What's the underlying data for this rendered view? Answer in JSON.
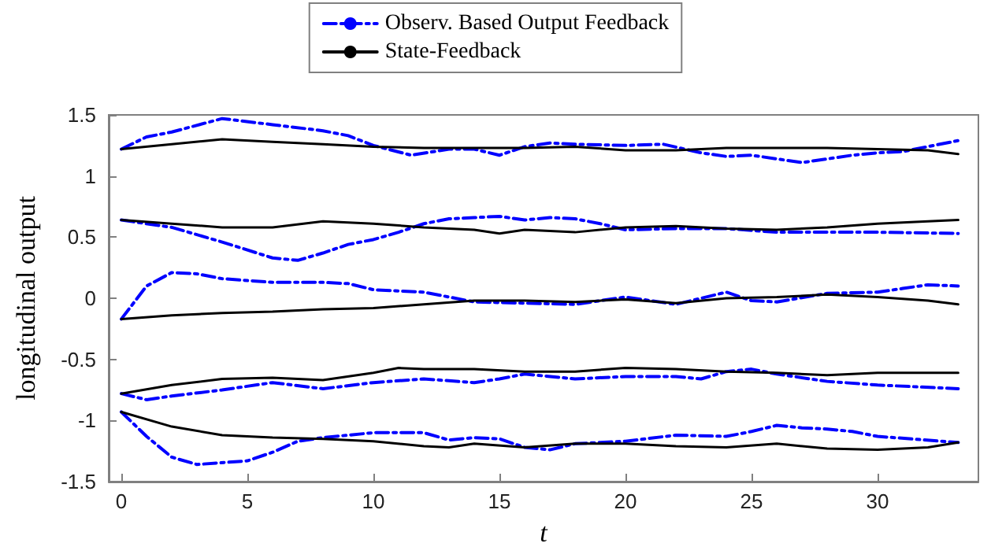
{
  "chart_data": {
    "type": "line",
    "xlabel": "t",
    "ylabel": "longitudinal output",
    "xlim": [
      -0.5,
      34
    ],
    "xticks": [
      0,
      5,
      10,
      15,
      20,
      25,
      30
    ],
    "ylim": [
      -1.5,
      1.5
    ],
    "yticks": [
      -1.5,
      -1,
      -0.5,
      0,
      0.5,
      1,
      1.5
    ],
    "grid": false,
    "legend": "top",
    "marker": "none",
    "series": [
      {
        "name": "Observ. Based Output Feedback",
        "color": "#0000ff",
        "line_style": "dashed",
        "x": [
          0,
          1,
          2,
          4,
          6,
          8,
          9,
          10,
          11.5,
          13,
          14,
          15,
          16,
          17,
          18,
          20,
          21.5,
          23,
          24,
          25,
          27,
          29,
          30,
          31,
          33.2
        ],
        "values": [
          1.22,
          1.32,
          1.36,
          1.47,
          1.42,
          1.37,
          1.33,
          1.25,
          1.17,
          1.22,
          1.22,
          1.17,
          1.24,
          1.27,
          1.26,
          1.25,
          1.26,
          1.19,
          1.16,
          1.17,
          1.11,
          1.17,
          1.19,
          1.2,
          1.29
        ]
      },
      {
        "name": "State-Feedback",
        "color": "#000000",
        "line_style": "solid",
        "x": [
          0,
          2,
          4,
          6,
          8,
          10,
          12,
          14,
          16,
          18,
          20,
          22,
          24,
          26,
          28,
          30,
          32,
          33.2
        ],
        "values": [
          1.22,
          1.26,
          1.3,
          1.28,
          1.26,
          1.24,
          1.23,
          1.23,
          1.23,
          1.24,
          1.21,
          1.21,
          1.23,
          1.23,
          1.23,
          1.22,
          1.21,
          1.18
        ]
      },
      {
        "color": "#0000ff",
        "line_style": "dashed",
        "x": [
          0,
          2,
          4,
          6,
          7,
          8,
          9,
          10,
          11,
          12,
          13,
          14,
          15,
          16,
          17,
          18,
          19,
          20,
          22,
          24,
          26,
          28,
          30,
          33.2
        ],
        "values": [
          0.64,
          0.58,
          0.46,
          0.33,
          0.31,
          0.37,
          0.44,
          0.48,
          0.54,
          0.61,
          0.65,
          0.66,
          0.67,
          0.64,
          0.66,
          0.65,
          0.61,
          0.56,
          0.57,
          0.57,
          0.54,
          0.54,
          0.54,
          0.53
        ]
      },
      {
        "color": "#000000",
        "line_style": "solid",
        "x": [
          0,
          2,
          4,
          6,
          8,
          10,
          12,
          14,
          15,
          16,
          18,
          20,
          22,
          24,
          26,
          28,
          30,
          32,
          33.2
        ],
        "values": [
          0.64,
          0.61,
          0.58,
          0.58,
          0.63,
          0.61,
          0.58,
          0.56,
          0.53,
          0.56,
          0.54,
          0.58,
          0.59,
          0.57,
          0.56,
          0.58,
          0.61,
          0.63,
          0.64
        ]
      },
      {
        "color": "#0000ff",
        "line_style": "dashed",
        "x": [
          0,
          1,
          2,
          3,
          4,
          6,
          8,
          9,
          10,
          12,
          13,
          14,
          16,
          18,
          20,
          21,
          22,
          24,
          25,
          26,
          28,
          30,
          31,
          32,
          33.2
        ],
        "values": [
          -0.17,
          0.1,
          0.21,
          0.2,
          0.16,
          0.13,
          0.13,
          0.12,
          0.07,
          0.05,
          0.01,
          -0.03,
          -0.04,
          -0.05,
          0.01,
          -0.02,
          -0.05,
          0.05,
          -0.02,
          -0.03,
          0.04,
          0.05,
          0.08,
          0.11,
          0.1
        ]
      },
      {
        "color": "#000000",
        "line_style": "solid",
        "x": [
          0,
          2,
          4,
          6,
          8,
          10,
          12,
          14,
          16,
          18,
          20,
          22,
          24,
          26,
          28,
          30,
          32,
          33.2
        ],
        "values": [
          -0.17,
          -0.14,
          -0.12,
          -0.11,
          -0.09,
          -0.08,
          -0.05,
          -0.02,
          -0.02,
          -0.03,
          -0.01,
          -0.04,
          0,
          0.01,
          0.03,
          0.01,
          -0.02,
          -0.05
        ]
      },
      {
        "color": "#0000ff",
        "line_style": "dashed",
        "x": [
          0,
          1,
          2,
          4,
          6,
          8,
          10,
          12,
          14,
          15,
          16,
          18,
          20,
          22,
          23,
          24,
          25,
          26,
          28,
          30,
          33.2
        ],
        "values": [
          -0.78,
          -0.83,
          -0.8,
          -0.75,
          -0.69,
          -0.74,
          -0.69,
          -0.66,
          -0.69,
          -0.66,
          -0.62,
          -0.66,
          -0.64,
          -0.64,
          -0.66,
          -0.6,
          -0.58,
          -0.62,
          -0.68,
          -0.71,
          -0.74
        ]
      },
      {
        "color": "#000000",
        "line_style": "solid",
        "x": [
          0,
          2,
          4,
          6,
          8,
          10,
          11,
          12,
          14,
          16,
          18,
          20,
          22,
          24,
          26,
          28,
          30,
          33.2
        ],
        "values": [
          -0.78,
          -0.71,
          -0.66,
          -0.65,
          -0.67,
          -0.61,
          -0.57,
          -0.58,
          -0.58,
          -0.6,
          -0.6,
          -0.57,
          -0.58,
          -0.6,
          -0.61,
          -0.63,
          -0.61,
          -0.61
        ]
      },
      {
        "color": "#0000ff",
        "line_style": "dashed",
        "x": [
          0,
          1,
          2,
          3,
          5,
          6,
          7,
          8,
          10,
          12,
          13,
          14,
          15,
          16,
          17,
          18,
          20,
          22,
          24,
          25,
          26,
          27,
          28,
          29,
          30,
          33.2
        ],
        "values": [
          -0.93,
          -1.13,
          -1.3,
          -1.36,
          -1.33,
          -1.26,
          -1.17,
          -1.14,
          -1.1,
          -1.1,
          -1.16,
          -1.14,
          -1.15,
          -1.22,
          -1.24,
          -1.19,
          -1.17,
          -1.12,
          -1.13,
          -1.09,
          -1.04,
          -1.06,
          -1.07,
          -1.09,
          -1.13,
          -1.18
        ]
      },
      {
        "color": "#000000",
        "line_style": "solid",
        "x": [
          0,
          2,
          4,
          6,
          8,
          10,
          12,
          13,
          14,
          16,
          18,
          20,
          22,
          24,
          26,
          28,
          30,
          32,
          33.2
        ],
        "values": [
          -0.93,
          -1.05,
          -1.12,
          -1.14,
          -1.15,
          -1.17,
          -1.21,
          -1.22,
          -1.19,
          -1.22,
          -1.19,
          -1.19,
          -1.21,
          -1.22,
          -1.19,
          -1.23,
          -1.24,
          -1.22,
          -1.18
        ]
      }
    ]
  }
}
